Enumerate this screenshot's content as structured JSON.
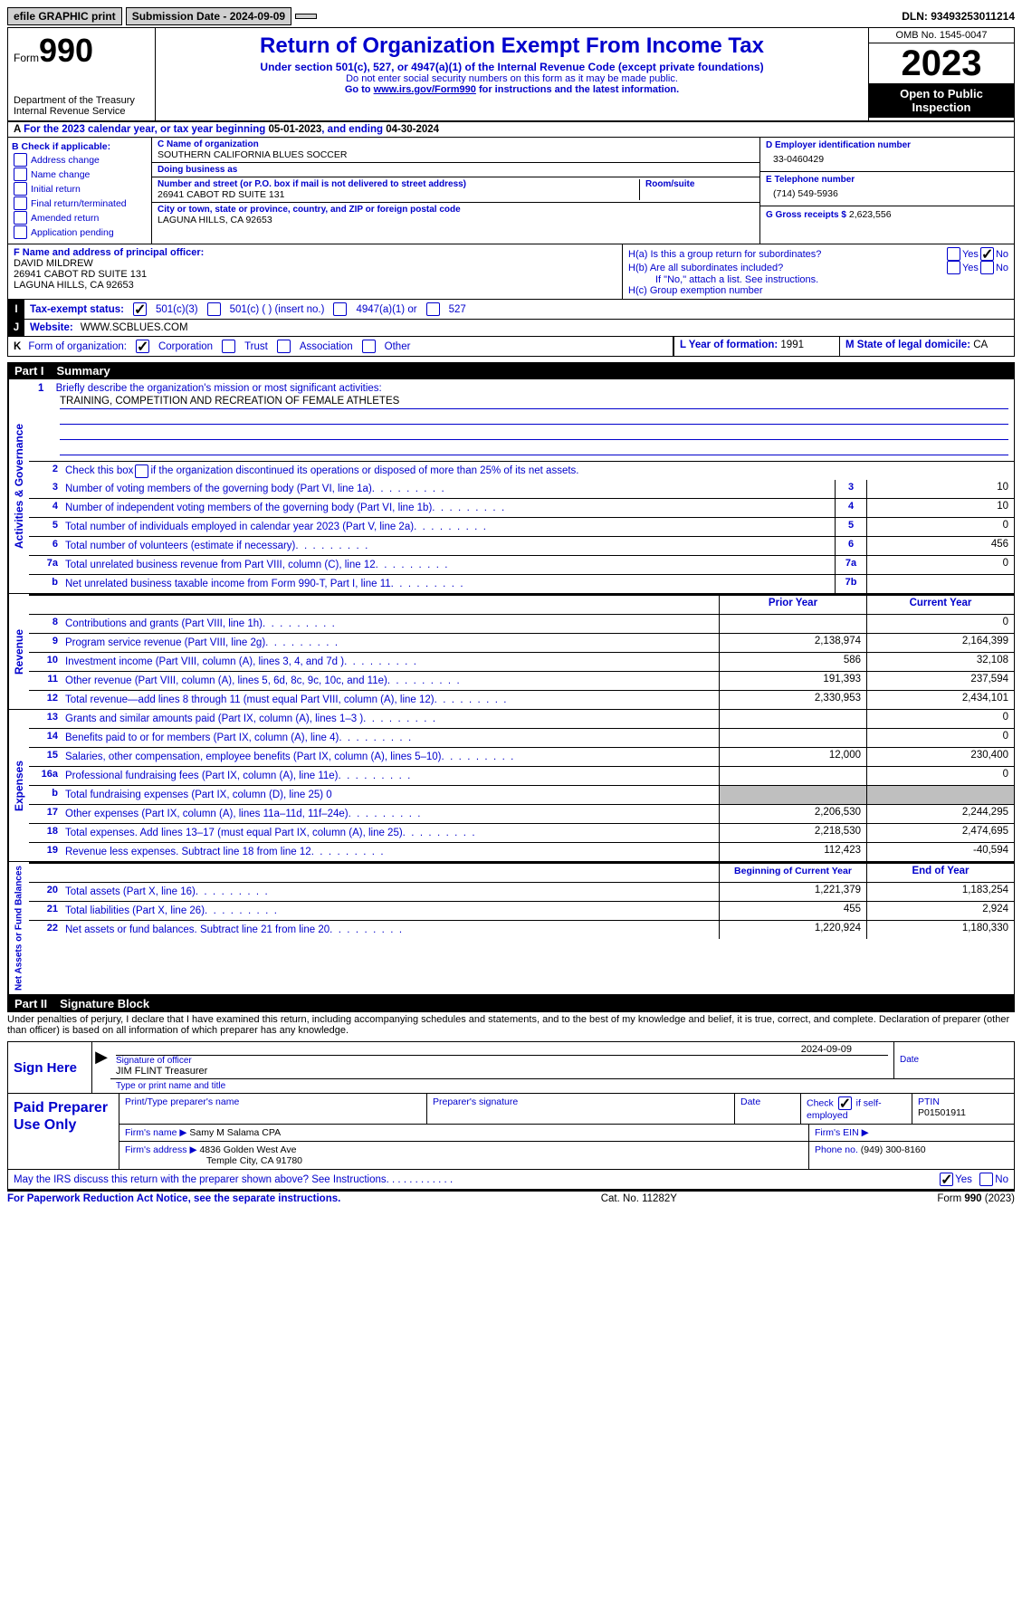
{
  "topbar": {
    "efile": "efile GRAPHIC print",
    "sub_label": "Submission Date - 2024-09-09",
    "dln": "DLN: 93493253011214"
  },
  "header": {
    "form_word": "Form",
    "form_num": "990",
    "dept": "Department of the Treasury\nInternal Revenue Service",
    "title": "Return of Organization Exempt From Income Tax",
    "sub1": "Under section 501(c), 527, or 4947(a)(1) of the Internal Revenue Code (except private foundations)",
    "sub2": "Do not enter social security numbers on this form as it may be made public.",
    "sub3_pre": "Go to ",
    "sub3_link": "www.irs.gov/Form990",
    "sub3_post": " for instructions and the latest information.",
    "omb": "OMB No. 1545-0047",
    "year": "2023",
    "open": "Open to Public Inspection"
  },
  "row_a": {
    "a": "A",
    "text1": "For the 2023 calendar year, or tax year beginning ",
    "begin": "05-01-2023",
    "text2": ", and ending ",
    "end": "04-30-2024"
  },
  "col_b": {
    "hdr": "B Check if applicable:",
    "opts": [
      "Address change",
      "Name change",
      "Initial return",
      "Final return/terminated",
      "Amended return",
      "Application pending"
    ]
  },
  "col_c": {
    "name_lbl": "C Name of organization",
    "name": "SOUTHERN CALIFORNIA BLUES SOCCER",
    "dba_lbl": "Doing business as",
    "dba": "",
    "street_lbl": "Number and street (or P.O. box if mail is not delivered to street address)",
    "street": "26941 CABOT RD SUITE 131",
    "room_lbl": "Room/suite",
    "room": "",
    "city_lbl": "City or town, state or province, country, and ZIP or foreign postal code",
    "city": "LAGUNA HILLS, CA  92653"
  },
  "col_deg": {
    "d_lbl": "D Employer identification number",
    "d_val": "33-0460429",
    "e_lbl": "E Telephone number",
    "e_val": "(714) 549-5936",
    "g_lbl": "G Gross receipts $",
    "g_val": "2,623,556"
  },
  "row_f": {
    "f_lbl": "F  Name and address of principal officer:",
    "f_name": "DAVID MILDREW",
    "f_addr": "26941 CABOT RD SUITE 131",
    "f_city": "LAGUNA HILLS, CA  92653",
    "ha_lbl": "H(a)  Is this a group return for subordinates?",
    "hb_lbl": "H(b)  Are all subordinates included?",
    "hb_note": "If \"No,\" attach a list. See instructions.",
    "hc_lbl": "H(c)  Group exemption number ",
    "yes": "Yes",
    "no": "No"
  },
  "row_i": {
    "tag": "I",
    "lbl": "Tax-exempt status:",
    "o1": "501(c)(3)",
    "o2": "501(c) (  ) (insert no.)",
    "o3": "4947(a)(1) or",
    "o4": "527"
  },
  "row_j": {
    "tag": "J",
    "lbl": "Website: ",
    "val": "WWW.SCBLUES.COM"
  },
  "row_k": {
    "tag": "K",
    "lbl": "Form of organization:",
    "o1": "Corporation",
    "o2": "Trust",
    "o3": "Association",
    "o4": "Other",
    "l_lbl": "L Year of formation: ",
    "l_val": "1991",
    "m_lbl": "M State of legal domicile: ",
    "m_val": "CA"
  },
  "part1": {
    "tag": "Part I",
    "title": "Summary"
  },
  "mission": {
    "num": "1",
    "lbl": "Briefly describe the organization's mission or most significant activities:",
    "val": "TRAINING, COMPETITION AND RECREATION OF FEMALE ATHLETES"
  },
  "lines_gov": [
    {
      "n": "2",
      "d": "Check this box      if the organization discontinued its operations or disposed of more than 25% of its net assets.",
      "box": "",
      "v1": "",
      "v2": ""
    },
    {
      "n": "3",
      "d": "Number of voting members of the governing body (Part VI, line 1a)",
      "box": "3",
      "v1": "",
      "v2": "10"
    },
    {
      "n": "4",
      "d": "Number of independent voting members of the governing body (Part VI, line 1b)",
      "box": "4",
      "v1": "",
      "v2": "10"
    },
    {
      "n": "5",
      "d": "Total number of individuals employed in calendar year 2023 (Part V, line 2a)",
      "box": "5",
      "v1": "",
      "v2": "0"
    },
    {
      "n": "6",
      "d": "Total number of volunteers (estimate if necessary)",
      "box": "6",
      "v1": "",
      "v2": "456"
    },
    {
      "n": "7a",
      "d": "Total unrelated business revenue from Part VIII, column (C), line 12",
      "box": "7a",
      "v1": "",
      "v2": "0"
    },
    {
      "n": "b",
      "d": "Net unrelated business taxable income from Form 990-T, Part I, line 11",
      "box": "7b",
      "v1": "",
      "v2": ""
    }
  ],
  "hdr_row": {
    "prior": "Prior Year",
    "current": "Current Year"
  },
  "lines_rev": [
    {
      "n": "8",
      "d": "Contributions and grants (Part VIII, line 1h)",
      "v1": "",
      "v2": "0"
    },
    {
      "n": "9",
      "d": "Program service revenue (Part VIII, line 2g)",
      "v1": "2,138,974",
      "v2": "2,164,399"
    },
    {
      "n": "10",
      "d": "Investment income (Part VIII, column (A), lines 3, 4, and 7d )",
      "v1": "586",
      "v2": "32,108"
    },
    {
      "n": "11",
      "d": "Other revenue (Part VIII, column (A), lines 5, 6d, 8c, 9c, 10c, and 11e)",
      "v1": "191,393",
      "v2": "237,594"
    },
    {
      "n": "12",
      "d": "Total revenue—add lines 8 through 11 (must equal Part VIII, column (A), line 12)",
      "v1": "2,330,953",
      "v2": "2,434,101"
    }
  ],
  "lines_exp": [
    {
      "n": "13",
      "d": "Grants and similar amounts paid (Part IX, column (A), lines 1–3 )",
      "v1": "",
      "v2": "0"
    },
    {
      "n": "14",
      "d": "Benefits paid to or for members (Part IX, column (A), line 4)",
      "v1": "",
      "v2": "0"
    },
    {
      "n": "15",
      "d": "Salaries, other compensation, employee benefits (Part IX, column (A), lines 5–10)",
      "v1": "12,000",
      "v2": "230,400"
    },
    {
      "n": "16a",
      "d": "Professional fundraising fees (Part IX, column (A), line 11e)",
      "v1": "",
      "v2": "0"
    },
    {
      "n": "b",
      "d": "Total fundraising expenses (Part IX, column (D), line 25) 0",
      "v1": "shade",
      "v2": "shade"
    },
    {
      "n": "17",
      "d": "Other expenses (Part IX, column (A), lines 11a–11d, 11f–24e)",
      "v1": "2,206,530",
      "v2": "2,244,295"
    },
    {
      "n": "18",
      "d": "Total expenses. Add lines 13–17 (must equal Part IX, column (A), line 25)",
      "v1": "2,218,530",
      "v2": "2,474,695"
    },
    {
      "n": "19",
      "d": "Revenue less expenses. Subtract line 18 from line 12",
      "v1": "112,423",
      "v2": "-40,594"
    }
  ],
  "hdr_row2": {
    "prior": "Beginning of Current Year",
    "current": "End of Year"
  },
  "lines_net": [
    {
      "n": "20",
      "d": "Total assets (Part X, line 16)",
      "v1": "1,221,379",
      "v2": "1,183,254"
    },
    {
      "n": "21",
      "d": "Total liabilities (Part X, line 26)",
      "v1": "455",
      "v2": "2,924"
    },
    {
      "n": "22",
      "d": "Net assets or fund balances. Subtract line 21 from line 20",
      "v1": "1,220,924",
      "v2": "1,180,330"
    }
  ],
  "vtabs": {
    "gov": "Activities & Governance",
    "rev": "Revenue",
    "exp": "Expenses",
    "net": "Net Assets or Fund Balances"
  },
  "part2": {
    "tag": "Part II",
    "title": "Signature Block"
  },
  "sig": {
    "decl": "Under penalties of perjury, I declare that I have examined this return, including accompanying schedules and statements, and to the best of my knowledge and belief, it is true, correct, and complete. Declaration of preparer (other than officer) is based on all information of which preparer has any knowledge.",
    "sign_here": "Sign Here",
    "sig_lbl": "Signature of officer",
    "sig_name": "JIM FLINT  Treasurer",
    "type_lbl": "Type or print name and title",
    "date_lbl": "Date",
    "date_val": "2024-09-09"
  },
  "prep": {
    "lbl": "Paid Preparer Use Only",
    "pname_lbl": "Print/Type preparer's name",
    "pname": "",
    "psig_lbl": "Preparer's signature",
    "pdate_lbl": "Date",
    "self_lbl": "Check         if self-employed",
    "ptin_lbl": "PTIN",
    "ptin": "P01501911",
    "firm_name_lbl": "Firm's name   ",
    "firm_name": "Samy M Salama CPA",
    "firm_ein_lbl": "Firm's EIN  ",
    "firm_ein": "",
    "firm_addr_lbl": "Firm's address  ",
    "firm_addr1": "4836 Golden West Ave",
    "firm_addr2": "Temple City, CA  91780",
    "phone_lbl": "Phone no. ",
    "phone": "(949) 300-8160"
  },
  "discuss": {
    "text": "May the IRS discuss this return with the preparer shown above? See Instructions.",
    "yes": "Yes",
    "no": "No"
  },
  "footer": {
    "l": "For Paperwork Reduction Act Notice, see the separate instructions.",
    "m": "Cat. No. 11282Y",
    "r_pre": "Form ",
    "r_form": "990",
    "r_post": " (2023)"
  },
  "colors": {
    "link": "#0000cc",
    "shade": "#bfbfbf"
  }
}
